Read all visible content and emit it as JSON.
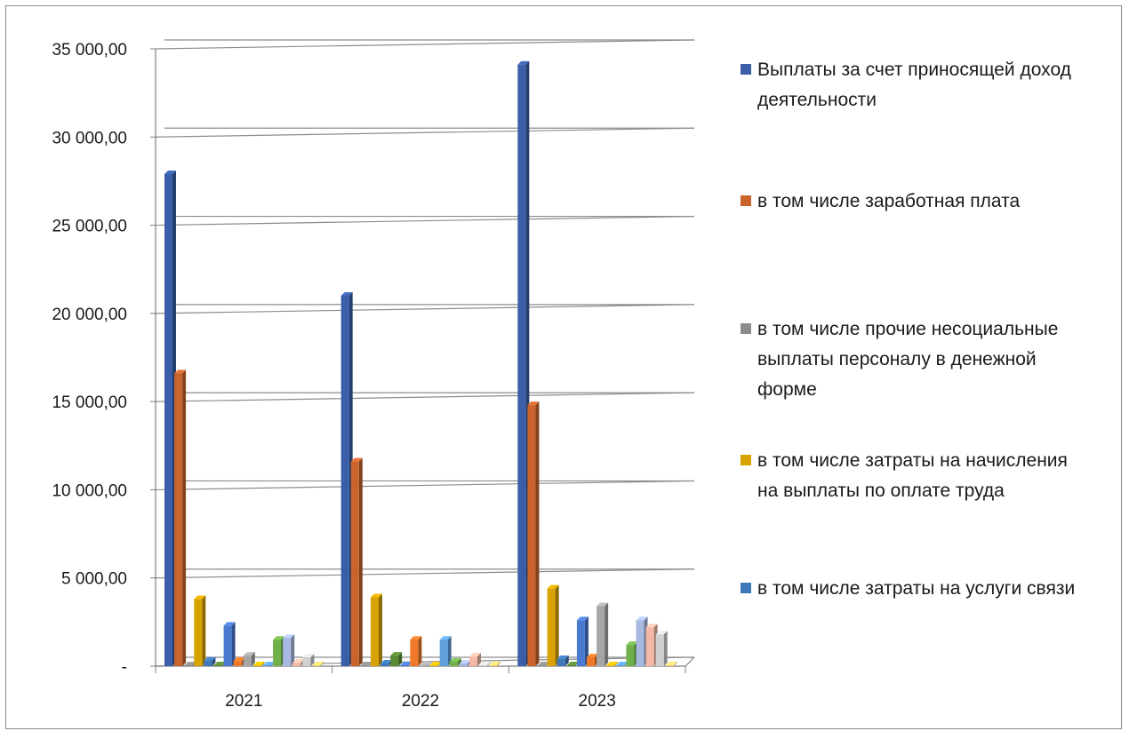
{
  "chart_data": {
    "type": "bar",
    "categories": [
      "2021",
      "2022",
      "2023"
    ],
    "ylim": [
      0,
      35000
    ],
    "y_ticks": [
      {
        "value": 35000,
        "label": "35 000,00"
      },
      {
        "value": 30000,
        "label": "30 000,00"
      },
      {
        "value": 25000,
        "label": "25 000,00"
      },
      {
        "value": 20000,
        "label": "20 000,00"
      },
      {
        "value": 15000,
        "label": "15 000,00"
      },
      {
        "value": 10000,
        "label": "10 000,00"
      },
      {
        "value": 5000,
        "label": "5 000,00"
      },
      {
        "value": 0,
        "label": "-"
      }
    ],
    "grid": true,
    "legend_position": "right",
    "series": [
      {
        "name": "Выплаты за счет приносящей доход деятельности",
        "color": "#3a5fa8",
        "values": [
          27900,
          21000,
          34100
        ],
        "legend": true
      },
      {
        "name": "в том числе заработная плата",
        "color": "#c8642c",
        "values": [
          16600,
          11600,
          14800
        ],
        "legend": true
      },
      {
        "name": "в том числе прочие несоциальные выплаты персоналу в денежной форме",
        "color": "#8c8c8c",
        "values": [
          0,
          0,
          0
        ],
        "legend": true
      },
      {
        "name": "в том числе затраты на начисления на выплаты по оплате труда",
        "color": "#d8a200",
        "values": [
          3800,
          3900,
          4400
        ],
        "legend": true
      },
      {
        "name": "в том числе затраты на услуги связи",
        "color": "#3e78b8",
        "values": [
          300,
          150,
          400
        ],
        "legend": true
      },
      {
        "color": "#5a8a34",
        "values": [
          0,
          600,
          0
        ],
        "legend": false
      },
      {
        "color": "#4a7ad0",
        "values": [
          2300,
          0,
          2600
        ],
        "legend": false
      },
      {
        "color": "#f07828",
        "values": [
          300,
          1500,
          500
        ],
        "legend": false
      },
      {
        "color": "#a6a6a6",
        "values": [
          600,
          0,
          3400
        ],
        "legend": false
      },
      {
        "color": "#e8b800",
        "values": [
          0,
          0,
          0
        ],
        "legend": false
      },
      {
        "color": "#60a0dc",
        "values": [
          0,
          1500,
          0
        ],
        "legend": false
      },
      {
        "color": "#70b04a",
        "values": [
          1500,
          250,
          1200
        ],
        "legend": false
      },
      {
        "color": "#a8b8e0",
        "values": [
          1600,
          150,
          2600
        ],
        "legend": false
      },
      {
        "color": "#f4b8a8",
        "values": [
          200,
          550,
          2200
        ],
        "legend": false
      },
      {
        "color": "#d0d0d0",
        "values": [
          500,
          0,
          1800
        ],
        "legend": false
      },
      {
        "color": "#f0d070",
        "values": [
          0,
          0,
          0
        ],
        "legend": false
      }
    ]
  }
}
